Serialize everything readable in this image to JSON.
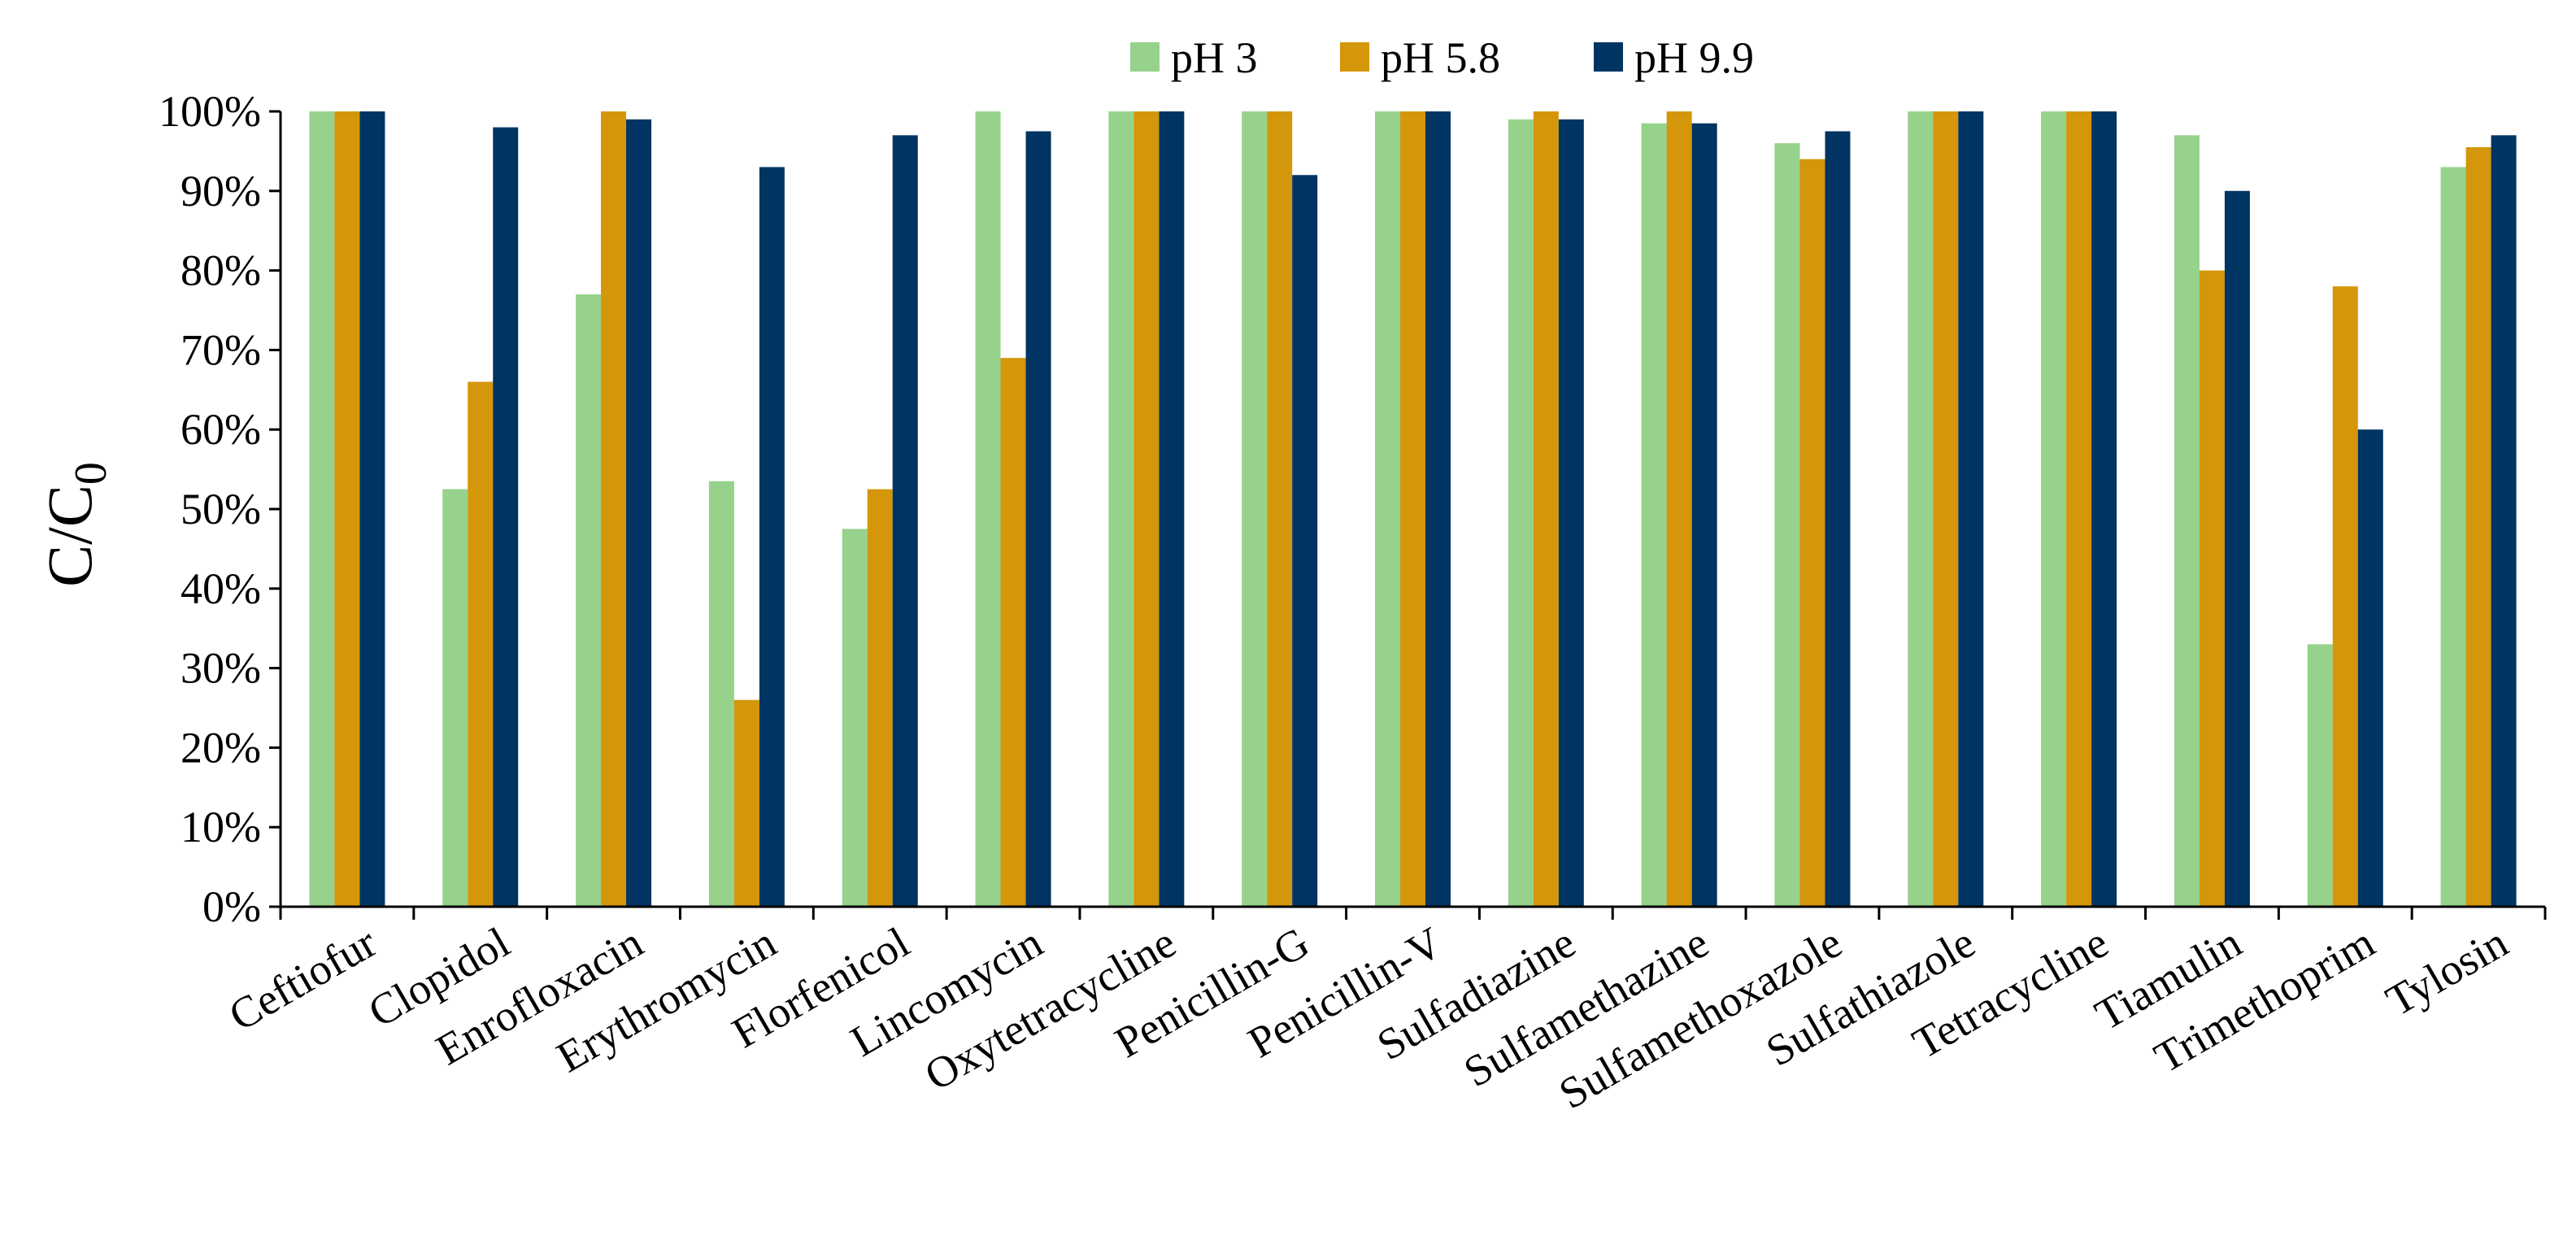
{
  "chart_data": {
    "type": "bar",
    "title": "",
    "xlabel": "",
    "ylabel": {
      "main": "C/C",
      "subscript": "0"
    },
    "ylim": [
      0,
      100
    ],
    "yticks": [
      0,
      10,
      20,
      30,
      40,
      50,
      60,
      70,
      80,
      90,
      100
    ],
    "ytick_labels": [
      "0%",
      "10%",
      "20%",
      "30%",
      "40%",
      "50%",
      "60%",
      "70%",
      "80%",
      "90%",
      "100%"
    ],
    "grid": false,
    "legend_position": "top",
    "categories": [
      "Ceftiofur",
      "Clopidol",
      "Enrofloxacin",
      "Erythromycin",
      "Florfenicol",
      "Lincomycin",
      "Oxytetracycline",
      "Penicillin-G",
      "Penicillin-V",
      "Sulfadiazine",
      "Sulfamethazine",
      "Sulfamethoxazole",
      "Sulfathiazole",
      "Tetracycline",
      "Tiamulin",
      "Trimethoprim",
      "Tylosin"
    ],
    "series": [
      {
        "name": "pH 3",
        "color": "#96D28B",
        "values": [
          100,
          52.5,
          77,
          53.5,
          47.5,
          100,
          100,
          100,
          100,
          99,
          98.5,
          96,
          100,
          100,
          97,
          33,
          93
        ]
      },
      {
        "name": "pH 5.8",
        "color": "#D4960A",
        "values": [
          100,
          66,
          100,
          26,
          52.5,
          69,
          100,
          100,
          100,
          100,
          100,
          94,
          100,
          100,
          80,
          78,
          95.5
        ]
      },
      {
        "name": "pH 9.9",
        "color": "#003462",
        "values": [
          100,
          98,
          99,
          93,
          97,
          97.5,
          100,
          92,
          100,
          99,
          98.5,
          97.5,
          100,
          100,
          90,
          60,
          97
        ]
      }
    ]
  }
}
